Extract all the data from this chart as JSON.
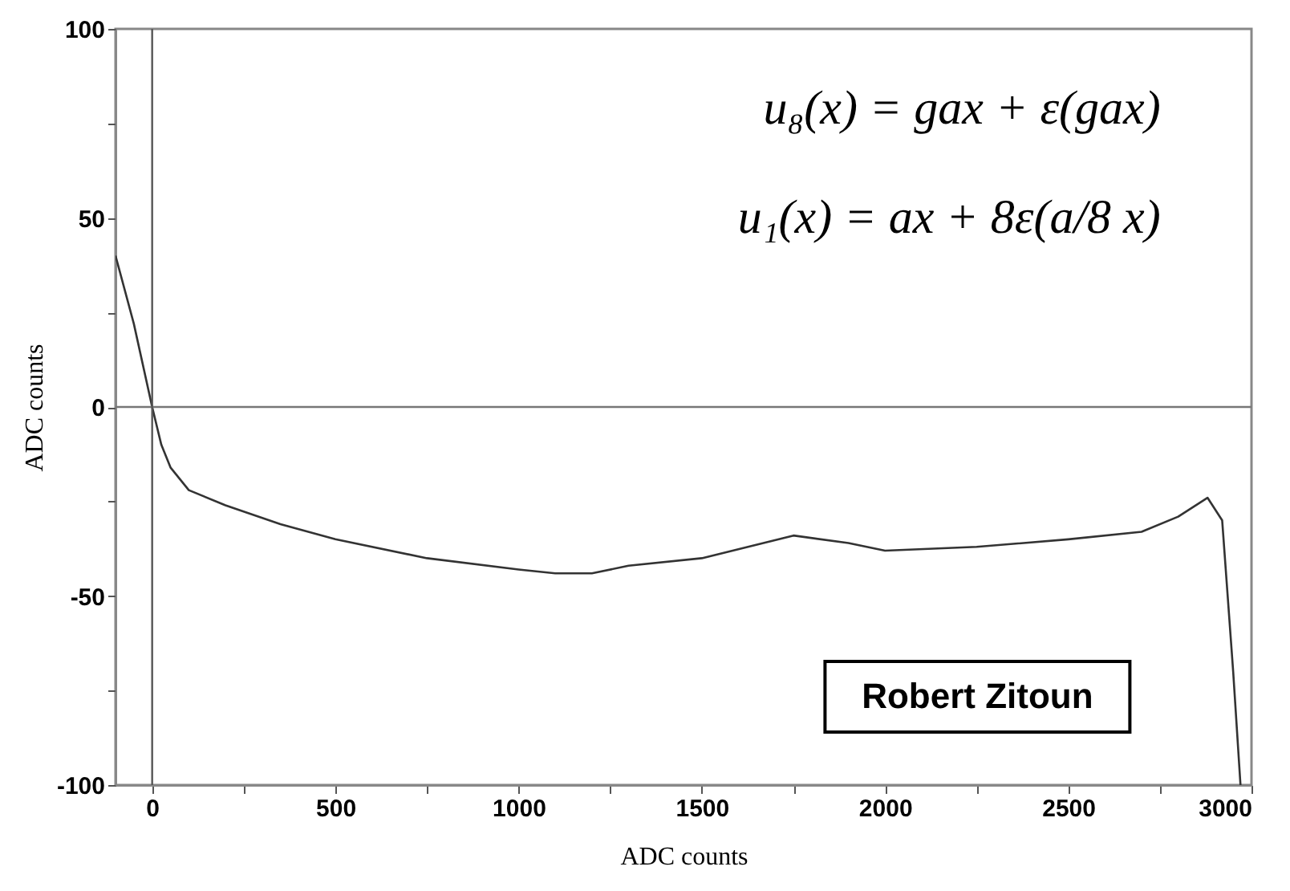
{
  "chart_data": {
    "type": "line",
    "xlabel": "ADC counts",
    "ylabel": "ADC counts",
    "x": [
      -100,
      -50,
      0,
      25,
      50,
      100,
      200,
      350,
      500,
      750,
      1000,
      1100,
      1200,
      1300,
      1500,
      1750,
      1900,
      2000,
      2250,
      2500,
      2700,
      2800,
      2880,
      2920,
      2950,
      2970
    ],
    "series": [
      {
        "color": "#333333",
        "values": [
          40,
          22,
          0,
          -10,
          -16,
          -22,
          -26,
          -31,
          -35,
          -40,
          -43,
          -44,
          -44,
          -42,
          -40,
          -34,
          -36,
          -38,
          -37,
          -35,
          -33,
          -29,
          -24,
          -30,
          -70,
          -100
        ]
      }
    ],
    "xlim": [
      -100,
      3000
    ],
    "ylim": [
      -100,
      100
    ],
    "xticks": [
      0,
      {
        "value": 250,
        "label": null
      },
      500,
      {
        "value": 750,
        "label": null
      },
      1000,
      {
        "value": 1250,
        "label": null
      },
      1500,
      {
        "value": 1750,
        "label": null
      },
      2000,
      {
        "value": 2250,
        "label": null
      },
      2500,
      {
        "value": 2750,
        "label": null
      },
      3000
    ],
    "yticks": [
      -100,
      {
        "value": -75,
        "label": null
      },
      -50,
      {
        "value": -25,
        "label": null
      },
      0,
      {
        "value": 25,
        "label": null
      },
      50,
      {
        "value": 75,
        "label": null
      },
      100
    ],
    "ref_lines": [
      {
        "axis": "y",
        "value": 0,
        "color": "#777777"
      },
      {
        "axis": "x",
        "value": 0,
        "color": "#555555"
      }
    ],
    "annotations": [
      "u₈(x) = gax + ε(gax)",
      "u₁(x) = ax + 8ε(a/8 x)",
      "Robert Zitoun"
    ],
    "grid": false,
    "marker": "none",
    "line_style": "solid"
  }
}
